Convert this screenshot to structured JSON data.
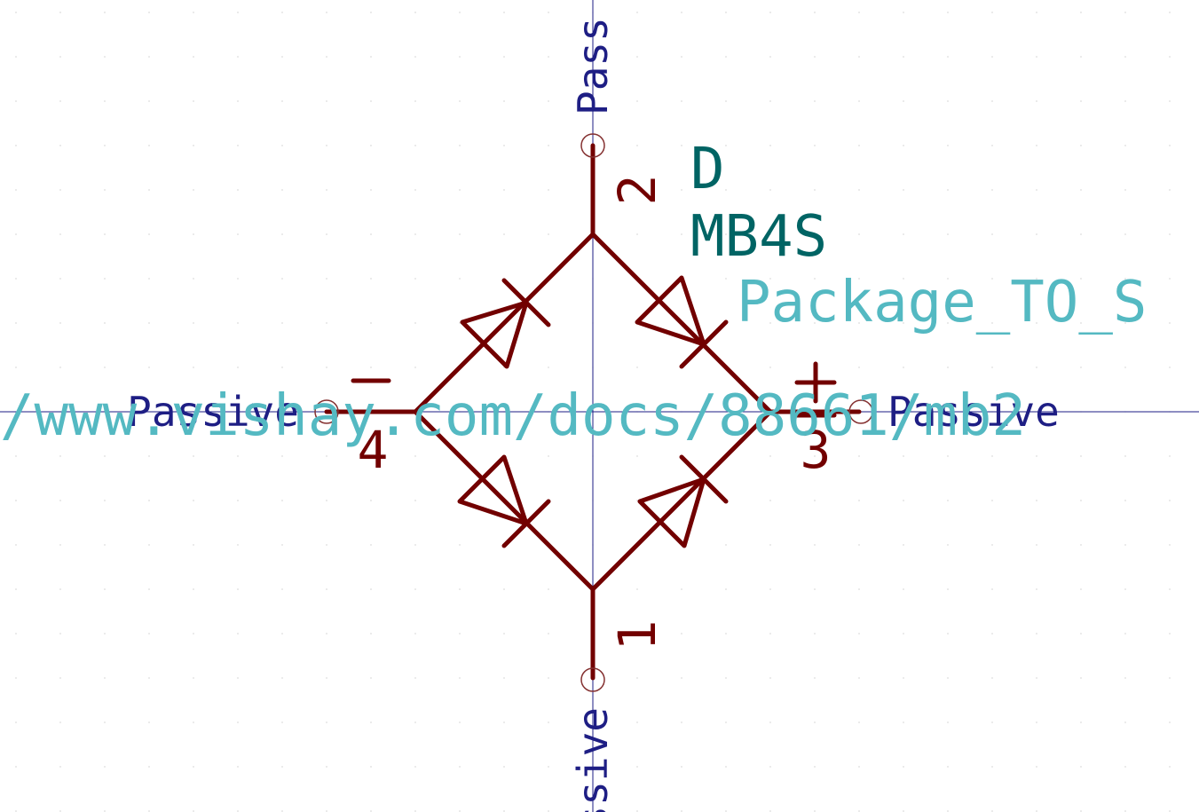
{
  "symbol": {
    "reference": "D",
    "value": "MB4S",
    "footprint": "Package_TO_S",
    "datasheet": "/www.vishay.com/docs/88661/mb2"
  },
  "pins": [
    {
      "number": "1",
      "type": "Passive",
      "polarity": ""
    },
    {
      "number": "2",
      "type": "Pass",
      "polarity": ""
    },
    {
      "number": "3",
      "type": "Passive",
      "polarity": "+"
    },
    {
      "number": "4",
      "type": "Passive",
      "polarity": "−"
    }
  ],
  "pin_type_bottom": "ssive",
  "colors": {
    "body": "#720000",
    "reference": "#006464",
    "value": "#006464",
    "field": "#54b9c2",
    "pin_type": "#1e1e84",
    "axis": "#1e1e84",
    "pin_circle": "#843030",
    "grid": "#c8c8c8"
  }
}
